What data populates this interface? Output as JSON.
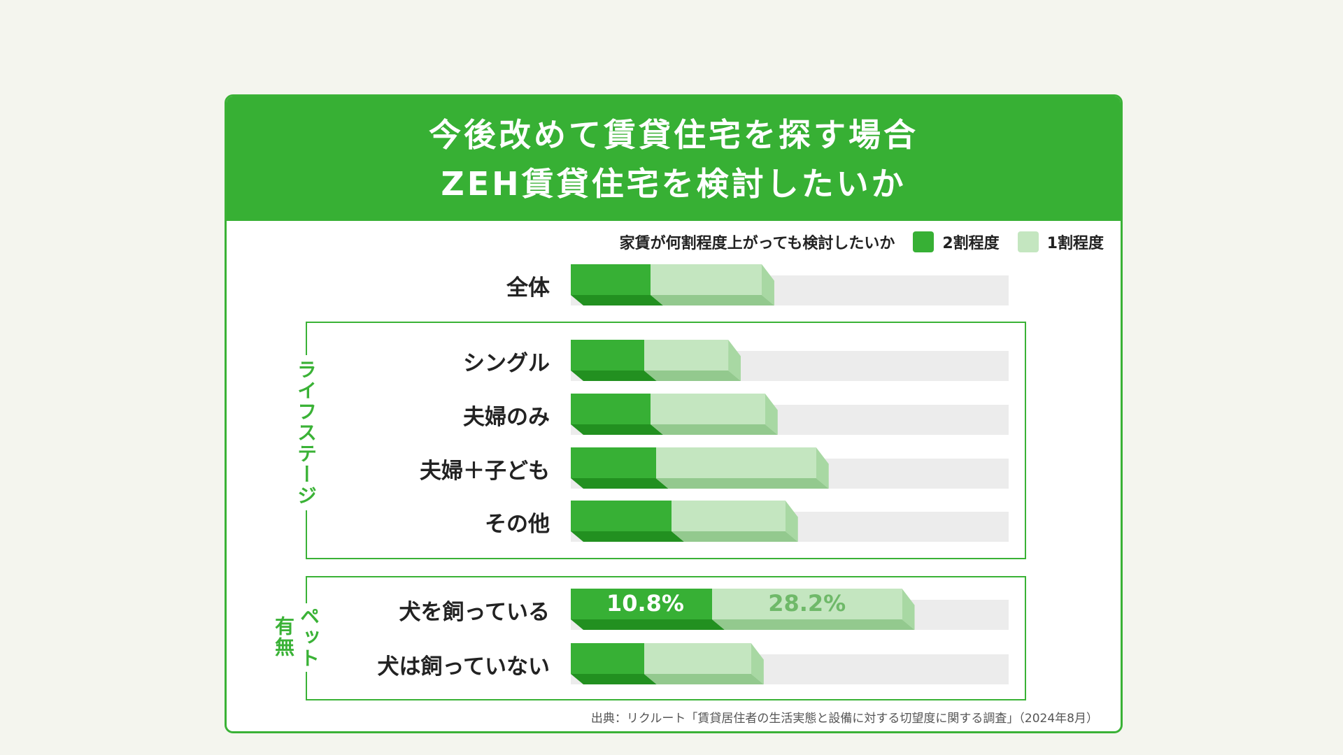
{
  "title_lines": [
    "今後改めて賃貸住宅を探す場合",
    "ZEH賃貸住宅を検討したいか"
  ],
  "legend": {
    "question": "家賃が何割程度上がっても検討したいか",
    "items": [
      "2割程度",
      "1割程度"
    ]
  },
  "colors": {
    "header": "#37b034",
    "dark": "#37b035",
    "dark_bottom": "#229020",
    "light": "#c4e6c0",
    "light_bottom": "#93c98e",
    "light_side": "#a8d8a3",
    "track": "#ececec",
    "border": "#3ab236"
  },
  "groups": [
    {
      "label": "ライフステージ"
    },
    {
      "label_a": "ペット",
      "label_b": "有無"
    }
  ],
  "source": "出典：リクルート「賃貸居住者の生活実態と設備に対する切望度に関する調査」（2024年8月）",
  "chart_data": {
    "type": "bar",
    "orientation": "horizontal",
    "stacked": true,
    "unit": "%",
    "categories": [
      "全体",
      "シングル",
      "夫婦のみ",
      "夫婦＋子ども",
      "その他",
      "犬を飼っている",
      "犬は飼っていない"
    ],
    "series": [
      {
        "name": "2割程度",
        "values": [
          6.1,
          5.6,
          6.1,
          6.5,
          7.7,
          10.8,
          5.6
        ]
      },
      {
        "name": "1割程度",
        "values": [
          16.5,
          12.5,
          17.0,
          23.8,
          16.9,
          28.2,
          15.9
        ]
      }
    ],
    "data_labels": [
      {
        "category": "犬を飼っている",
        "values": [
          "10.8%",
          "28.2%"
        ]
      }
    ],
    "legend_position": "top-right",
    "grid": false
  }
}
